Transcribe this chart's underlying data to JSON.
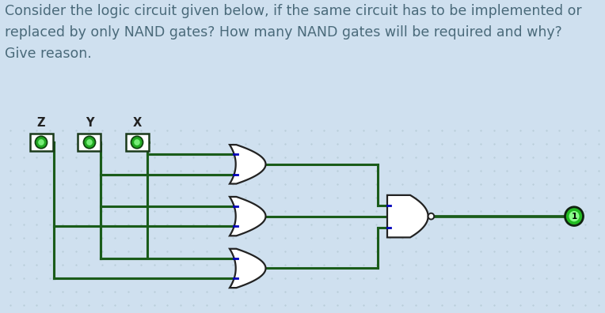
{
  "bg_top": "#cfe0ef",
  "bg_circuit": "#e2ecf5",
  "dot_color": "#b8ccd8",
  "wire_color": "#1a5c1a",
  "gate_edge": "#222222",
  "gate_fill": "#ffffff",
  "title_text": "Consider the logic circuit given below, if the same circuit has to be implemented or\nreplaced by only NAND gates? How many NAND gates will be required and why?\nGive reason.",
  "title_color": "#4a6a7a",
  "title_fontsize": 12.5,
  "input_labels": [
    "Z",
    "Y",
    "X"
  ],
  "term_fill": "#22aa22",
  "term_edge": "#114411",
  "output_fill": "#22bb22",
  "blue_mark": "#0000bb",
  "lw": 2.2
}
